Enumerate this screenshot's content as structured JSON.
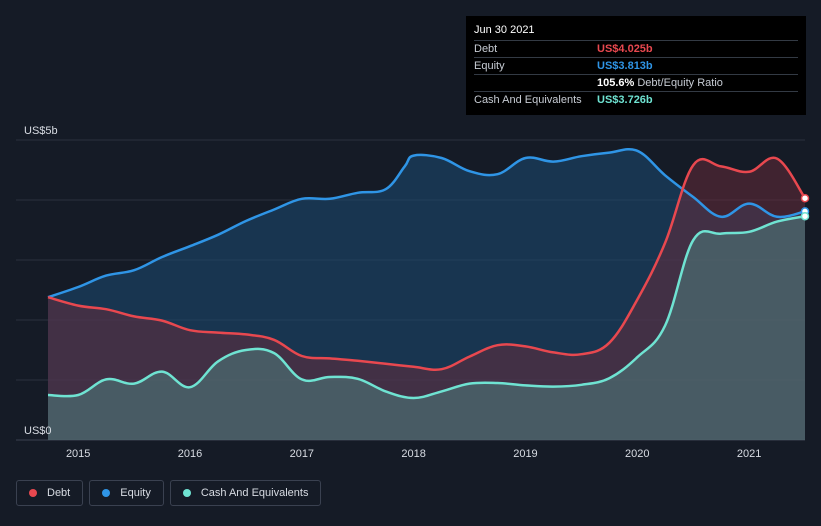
{
  "tooltip": {
    "date": "Jun 30 2021",
    "rows": [
      {
        "label": "Debt",
        "value": "US$4.025b",
        "color": "#e8484f"
      },
      {
        "label": "Equity",
        "value": "US$3.813b",
        "color": "#2f95e6"
      },
      {
        "label": "",
        "ratio": "105.6%",
        "ratio_label": "Debt/Equity Ratio"
      },
      {
        "label": "Cash And Equivalents",
        "value": "US$3.726b",
        "color": "#6fe3d2"
      }
    ]
  },
  "legend": [
    {
      "label": "Debt",
      "color": "#e8484f",
      "icon": "dot-icon"
    },
    {
      "label": "Equity",
      "color": "#2f95e6",
      "icon": "dot-icon"
    },
    {
      "label": "Cash And Equivalents",
      "color": "#6fe3d2",
      "icon": "dot-icon"
    }
  ],
  "chart_data": {
    "type": "area",
    "y_tick_labels": [
      {
        "value": 5,
        "label": "US$5b"
      },
      {
        "value": 0,
        "label": "US$0"
      }
    ],
    "ylim": [
      0,
      5
    ],
    "xlim": [
      2014.73,
      2021.5
    ],
    "x_ticks": [
      2015,
      2016,
      2017,
      2018,
      2019,
      2020,
      2021
    ],
    "grid": true,
    "legend_position": "bottom-left",
    "series": [
      {
        "name": "Equity",
        "color": "#2f95e6",
        "x": [
          2014.73,
          2015.0,
          2015.25,
          2015.5,
          2015.75,
          2016.0,
          2016.25,
          2016.5,
          2016.75,
          2017.0,
          2017.25,
          2017.5,
          2017.75,
          2017.92,
          2018.0,
          2018.25,
          2018.5,
          2018.75,
          2019.0,
          2019.25,
          2019.5,
          2019.75,
          2020.0,
          2020.25,
          2020.5,
          2020.75,
          2021.0,
          2021.25,
          2021.5
        ],
        "values": [
          2.38,
          2.55,
          2.74,
          2.83,
          3.05,
          3.23,
          3.42,
          3.65,
          3.84,
          4.02,
          4.02,
          4.12,
          4.18,
          4.56,
          4.74,
          4.7,
          4.48,
          4.43,
          4.7,
          4.64,
          4.73,
          4.79,
          4.82,
          4.41,
          4.05,
          3.72,
          3.94,
          3.72,
          3.81
        ]
      },
      {
        "name": "Debt",
        "color": "#e8484f",
        "x": [
          2014.73,
          2015.0,
          2015.25,
          2015.5,
          2015.75,
          2016.0,
          2016.25,
          2016.5,
          2016.75,
          2017.0,
          2017.25,
          2017.5,
          2017.75,
          2018.0,
          2018.25,
          2018.5,
          2018.75,
          2019.0,
          2019.25,
          2019.5,
          2019.75,
          2020.0,
          2020.25,
          2020.5,
          2020.75,
          2021.0,
          2021.25,
          2021.5
        ],
        "values": [
          2.38,
          2.24,
          2.18,
          2.06,
          1.99,
          1.83,
          1.79,
          1.76,
          1.67,
          1.4,
          1.36,
          1.32,
          1.27,
          1.22,
          1.18,
          1.39,
          1.58,
          1.56,
          1.46,
          1.43,
          1.62,
          2.34,
          3.29,
          4.58,
          4.56,
          4.47,
          4.69,
          4.03
        ]
      },
      {
        "name": "Cash And Equivalents",
        "color": "#6fe3d2",
        "x": [
          2014.73,
          2015.0,
          2015.25,
          2015.5,
          2015.75,
          2016.0,
          2016.25,
          2016.5,
          2016.75,
          2017.0,
          2017.25,
          2017.5,
          2017.75,
          2018.0,
          2018.25,
          2018.5,
          2018.75,
          2019.0,
          2019.25,
          2019.5,
          2019.75,
          2020.0,
          2020.25,
          2020.5,
          2020.75,
          2021.0,
          2021.25,
          2021.5
        ],
        "values": [
          0.75,
          0.75,
          1.01,
          0.94,
          1.14,
          0.88,
          1.31,
          1.5,
          1.45,
          1.01,
          1.05,
          1.02,
          0.81,
          0.7,
          0.81,
          0.94,
          0.95,
          0.91,
          0.89,
          0.92,
          1.03,
          1.38,
          1.91,
          3.33,
          3.44,
          3.47,
          3.64,
          3.73
        ]
      }
    ]
  }
}
